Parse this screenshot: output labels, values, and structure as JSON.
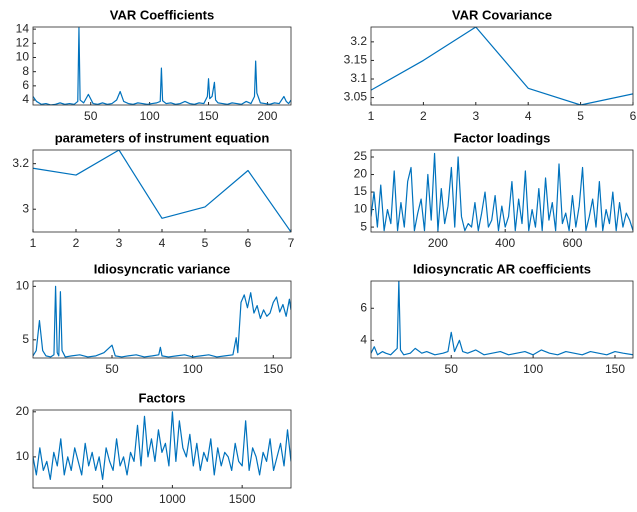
{
  "chart_data": [
    {
      "type": "line",
      "title": "VAR Coefficients",
      "color": "#0072bd",
      "x": [
        1,
        4,
        8,
        12,
        16,
        20,
        24,
        28,
        32,
        36,
        39,
        40,
        41,
        44,
        48,
        52,
        56,
        60,
        64,
        68,
        72,
        75,
        78,
        82,
        86,
        90,
        94,
        98,
        102,
        106,
        109,
        110,
        111,
        114,
        118,
        122,
        126,
        130,
        134,
        138,
        142,
        146,
        149,
        150,
        151,
        153,
        155,
        156,
        158,
        162,
        166,
        170,
        174,
        178,
        182,
        186,
        189,
        190,
        191,
        194,
        198,
        202,
        206,
        210,
        214,
        216,
        218,
        220
      ],
      "values": [
        4.5,
        3.8,
        3.4,
        3.5,
        3.3,
        3.4,
        3.6,
        3.4,
        3.5,
        3.4,
        3.8,
        14.2,
        4,
        3.6,
        4.8,
        3.5,
        3.4,
        3.6,
        3.4,
        3.5,
        4,
        5.2,
        3.8,
        3.5,
        3.4,
        3.6,
        3.5,
        3.4,
        3.5,
        3.6,
        3.8,
        8.5,
        3.9,
        3.5,
        3.6,
        3.4,
        3.5,
        3.8,
        3.5,
        3.4,
        3.6,
        3.5,
        4.5,
        7,
        4.2,
        4.5,
        6.5,
        4,
        3.6,
        3.5,
        3.4,
        3.6,
        3.5,
        3.4,
        3.8,
        3.5,
        4.5,
        9.5,
        5,
        3.6,
        3.5,
        3.4,
        3.6,
        3.5,
        4.5,
        3.8,
        3.5,
        4
      ],
      "xlim": [
        1,
        220
      ],
      "ylim": [
        3.3,
        14.3
      ],
      "xticks": [
        50,
        100,
        150,
        200
      ],
      "yticks": [
        4,
        6,
        8,
        10,
        12,
        14
      ]
    },
    {
      "type": "line",
      "title": "VAR Covariance",
      "color": "#0072bd",
      "x": [
        1,
        2,
        3,
        4,
        5,
        6
      ],
      "values": [
        3.07,
        3.15,
        3.24,
        3.075,
        3.03,
        3.06
      ],
      "xlim": [
        1,
        6
      ],
      "ylim": [
        3.03,
        3.24
      ],
      "xticks": [
        1,
        2,
        3,
        4,
        5,
        6
      ],
      "yticks": [
        3.05,
        3.1,
        3.15,
        3.2
      ]
    },
    {
      "type": "line",
      "title": "parameters of instrument equation",
      "color": "#0072bd",
      "x": [
        1,
        2,
        3,
        4,
        5,
        6,
        7
      ],
      "values": [
        3.18,
        3.15,
        3.26,
        2.96,
        3.01,
        3.17,
        2.9
      ],
      "xlim": [
        1,
        7
      ],
      "ylim": [
        2.9,
        3.26
      ],
      "xticks": [
        1,
        2,
        3,
        4,
        5,
        6,
        7
      ],
      "yticks": [
        3,
        3.2
      ]
    },
    {
      "type": "line",
      "title": "Factor loadings",
      "color": "#0072bd",
      "x": [
        1,
        10,
        20,
        30,
        40,
        50,
        60,
        70,
        80,
        90,
        100,
        110,
        120,
        130,
        140,
        150,
        160,
        170,
        180,
        190,
        200,
        210,
        220,
        230,
        240,
        250,
        260,
        270,
        280,
        290,
        300,
        310,
        320,
        330,
        340,
        350,
        360,
        370,
        380,
        390,
        400,
        410,
        420,
        430,
        440,
        450,
        460,
        470,
        480,
        490,
        500,
        510,
        520,
        530,
        540,
        550,
        560,
        570,
        580,
        590,
        600,
        610,
        620,
        630,
        640,
        650,
        660,
        670,
        680,
        690,
        700,
        710,
        720,
        730,
        740,
        750,
        760,
        770,
        780
      ],
      "values": [
        8,
        15,
        5,
        17,
        4,
        10,
        6,
        21,
        4,
        12,
        5,
        18,
        22,
        4,
        9,
        13,
        4,
        20,
        7,
        26,
        4,
        16,
        6,
        11,
        22,
        5,
        25,
        8,
        4,
        6,
        5,
        12,
        4,
        9,
        15,
        5,
        7,
        14,
        4,
        11,
        5,
        8,
        18,
        4,
        13,
        6,
        21,
        4,
        10,
        5,
        16,
        4,
        19,
        7,
        12,
        4,
        23,
        6,
        9,
        4,
        14,
        5,
        11,
        22,
        4,
        8,
        13,
        5,
        18,
        4,
        10,
        6,
        15,
        4,
        12,
        5,
        9,
        7,
        4
      ],
      "xlim": [
        1,
        780
      ],
      "ylim": [
        3.6,
        27
      ],
      "xticks": [
        200,
        400,
        600
      ],
      "yticks": [
        5,
        10,
        15,
        20,
        25
      ]
    },
    {
      "type": "line",
      "title": "Idiosyncratic variance",
      "color": "#0072bd",
      "x": [
        1,
        3,
        5,
        7,
        9,
        12,
        14,
        15,
        16,
        17,
        18,
        19,
        21,
        25,
        30,
        35,
        40,
        45,
        50,
        52,
        56,
        60,
        65,
        70,
        75,
        79,
        80,
        81,
        85,
        90,
        95,
        100,
        105,
        110,
        115,
        120,
        125,
        127,
        128,
        130,
        132,
        134,
        136,
        138,
        140,
        142,
        144,
        146,
        148,
        150,
        152,
        154,
        156,
        158,
        160,
        161
      ],
      "values": [
        3.5,
        4,
        6.8,
        4,
        3.5,
        3.4,
        3.6,
        10,
        3.8,
        3.5,
        9.5,
        4,
        3.4,
        3.5,
        3.6,
        3.4,
        3.5,
        3.8,
        4.5,
        3.5,
        3.4,
        3.5,
        3.6,
        3.4,
        3.5,
        3.6,
        4.3,
        3.5,
        3.4,
        3.5,
        3.6,
        3.4,
        3.5,
        3.6,
        3.4,
        3.5,
        3.6,
        5.2,
        3.8,
        8.5,
        9.2,
        8,
        9.4,
        7.5,
        8.2,
        7,
        7.8,
        7.2,
        7.5,
        8.5,
        9,
        7.6,
        8.3,
        7.2,
        8.8,
        7.8
      ],
      "xlim": [
        1,
        161
      ],
      "ylim": [
        3.3,
        10.5
      ],
      "xticks": [
        50,
        100,
        150
      ],
      "yticks": [
        5,
        10
      ]
    },
    {
      "type": "line",
      "title": "Idiosyncratic AR coefficients",
      "color": "#0072bd",
      "x": [
        1,
        3,
        5,
        8,
        10,
        13,
        15,
        17,
        18,
        19,
        21,
        25,
        28,
        32,
        35,
        40,
        45,
        48,
        50,
        52,
        55,
        57,
        60,
        65,
        70,
        75,
        80,
        85,
        90,
        95,
        100,
        105,
        110,
        115,
        120,
        125,
        130,
        135,
        140,
        145,
        150,
        155,
        161
      ],
      "values": [
        3.2,
        3.6,
        3.1,
        3.3,
        3.2,
        3.1,
        3.3,
        3.5,
        7.7,
        3.4,
        3.1,
        3.2,
        3.5,
        3.2,
        3.3,
        3.1,
        3.2,
        3.3,
        4.5,
        3.3,
        4,
        3.3,
        3.2,
        3.4,
        3.1,
        3.2,
        3.3,
        3.1,
        3.2,
        3.3,
        3.1,
        3.4,
        3.2,
        3.1,
        3.3,
        3.2,
        3.1,
        3.3,
        3.2,
        3.1,
        3.3,
        3.2,
        3.1
      ],
      "xlim": [
        1,
        161
      ],
      "ylim": [
        2.9,
        7.7
      ],
      "xticks": [
        50,
        100,
        150
      ],
      "yticks": [
        4,
        6
      ]
    },
    {
      "type": "line",
      "title": "Factors",
      "color": "#0072bd",
      "x": [
        1,
        25,
        50,
        75,
        100,
        125,
        150,
        175,
        200,
        225,
        250,
        275,
        300,
        325,
        350,
        375,
        400,
        425,
        450,
        475,
        500,
        525,
        550,
        575,
        600,
        625,
        650,
        675,
        700,
        725,
        750,
        775,
        800,
        825,
        850,
        875,
        900,
        925,
        950,
        975,
        1000,
        1025,
        1050,
        1075,
        1100,
        1125,
        1150,
        1175,
        1200,
        1225,
        1250,
        1275,
        1300,
        1325,
        1350,
        1375,
        1400,
        1425,
        1450,
        1475,
        1500,
        1525,
        1550,
        1575,
        1600,
        1625,
        1650,
        1675,
        1700,
        1725,
        1750,
        1775,
        1800,
        1825,
        1850
      ],
      "values": [
        10,
        6,
        12,
        7,
        9,
        5,
        11,
        8,
        14,
        6,
        10,
        7,
        12,
        9,
        6,
        13,
        8,
        11,
        7,
        10,
        5,
        12,
        9,
        7,
        14,
        8,
        10,
        6,
        11,
        9,
        17,
        8,
        19,
        10,
        14,
        9,
        16,
        11,
        13,
        8,
        20,
        9,
        18,
        12,
        10,
        15,
        8,
        13,
        7,
        11,
        9,
        14,
        6,
        12,
        8,
        11,
        10,
        7,
        13,
        9,
        8,
        18,
        7,
        12,
        10,
        6,
        11,
        9,
        14,
        7,
        10,
        13,
        8,
        16,
        9
      ],
      "xlim": [
        1,
        1850
      ],
      "ylim": [
        3.1,
        20.4
      ],
      "xticks": [
        500,
        1000,
        1500
      ],
      "yticks": [
        10,
        20
      ]
    }
  ]
}
